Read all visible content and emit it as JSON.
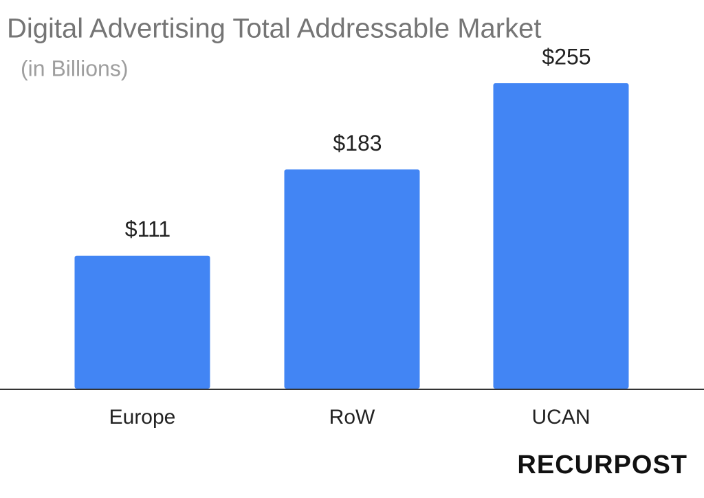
{
  "chart_data": {
    "type": "bar",
    "title": "Digital Advertising Total Addressable Market",
    "subtitle": "(in Billions)",
    "categories": [
      "Europe",
      "RoW",
      "UCAN"
    ],
    "values": [
      111,
      183,
      255
    ],
    "value_labels": [
      "$111",
      "$183",
      "$255"
    ],
    "color": "#4285f4"
  },
  "logo": "RECURPOST"
}
